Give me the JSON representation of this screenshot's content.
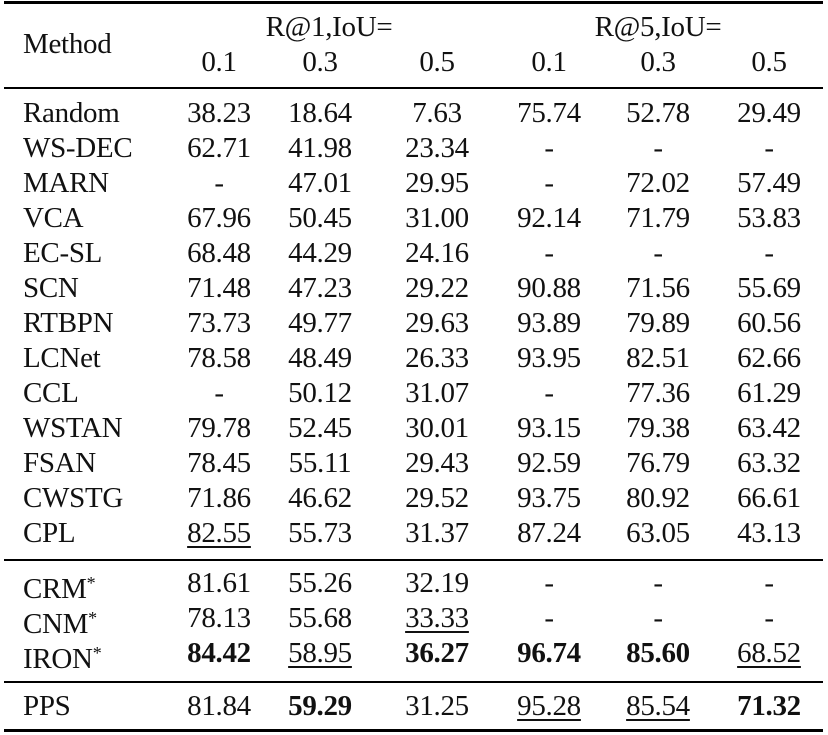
{
  "table": {
    "header": {
      "method_label": "Method",
      "groups": [
        {
          "label": "R@1,IoU=",
          "subcolumns": [
            "0.1",
            "0.3",
            "0.5"
          ]
        },
        {
          "label": "R@5,IoU=",
          "subcolumns": [
            "0.1",
            "0.3",
            "0.5"
          ]
        }
      ]
    },
    "sections": [
      {
        "rows": [
          {
            "method": "Random",
            "marker": "",
            "values": [
              "38.23",
              "18.64",
              "7.63",
              "75.74",
              "52.78",
              "29.49"
            ],
            "bold": [],
            "underline": []
          },
          {
            "method": "WS-DEC",
            "marker": "",
            "values": [
              "62.71",
              "41.98",
              "23.34",
              "-",
              "-",
              "-"
            ],
            "bold": [],
            "underline": []
          },
          {
            "method": "MARN",
            "marker": "",
            "values": [
              "-",
              "47.01",
              "29.95",
              "-",
              "72.02",
              "57.49"
            ],
            "bold": [],
            "underline": []
          },
          {
            "method": "VCA",
            "marker": "",
            "values": [
              "67.96",
              "50.45",
              "31.00",
              "92.14",
              "71.79",
              "53.83"
            ],
            "bold": [],
            "underline": []
          },
          {
            "method": "EC-SL",
            "marker": "",
            "values": [
              "68.48",
              "44.29",
              "24.16",
              "-",
              "-",
              "-"
            ],
            "bold": [],
            "underline": []
          },
          {
            "method": "SCN",
            "marker": "",
            "values": [
              "71.48",
              "47.23",
              "29.22",
              "90.88",
              "71.56",
              "55.69"
            ],
            "bold": [],
            "underline": []
          },
          {
            "method": "RTBPN",
            "marker": "",
            "values": [
              "73.73",
              "49.77",
              "29.63",
              "93.89",
              "79.89",
              "60.56"
            ],
            "bold": [],
            "underline": []
          },
          {
            "method": "LCNet",
            "marker": "",
            "values": [
              "78.58",
              "48.49",
              "26.33",
              "93.95",
              "82.51",
              "62.66"
            ],
            "bold": [],
            "underline": []
          },
          {
            "method": "CCL",
            "marker": "",
            "values": [
              "-",
              "50.12",
              "31.07",
              "-",
              "77.36",
              "61.29"
            ],
            "bold": [],
            "underline": []
          },
          {
            "method": "WSTAN",
            "marker": "",
            "values": [
              "79.78",
              "52.45",
              "30.01",
              "93.15",
              "79.38",
              "63.42"
            ],
            "bold": [],
            "underline": []
          },
          {
            "method": "FSAN",
            "marker": "",
            "values": [
              "78.45",
              "55.11",
              "29.43",
              "92.59",
              "76.79",
              "63.32"
            ],
            "bold": [],
            "underline": []
          },
          {
            "method": "CWSTG",
            "marker": "",
            "values": [
              "71.86",
              "46.62",
              "29.52",
              "93.75",
              "80.92",
              "66.61"
            ],
            "bold": [],
            "underline": []
          },
          {
            "method": "CPL",
            "marker": "",
            "values": [
              "82.55",
              "55.73",
              "31.37",
              "87.24",
              "63.05",
              "43.13"
            ],
            "bold": [],
            "underline": [
              0
            ]
          }
        ]
      },
      {
        "rows": [
          {
            "method": "CRM",
            "marker": "*",
            "values": [
              "81.61",
              "55.26",
              "32.19",
              "-",
              "-",
              "-"
            ],
            "bold": [],
            "underline": []
          },
          {
            "method": "CNM",
            "marker": "*",
            "values": [
              "78.13",
              "55.68",
              "33.33",
              "-",
              "-",
              "-"
            ],
            "bold": [],
            "underline": [
              2
            ]
          },
          {
            "method": "IRON",
            "marker": "*",
            "values": [
              "84.42",
              "58.95",
              "36.27",
              "96.74",
              "85.60",
              "68.52"
            ],
            "bold": [
              0,
              2,
              3,
              4
            ],
            "underline": [
              1,
              5
            ]
          }
        ]
      },
      {
        "rows": [
          {
            "method": "PPS",
            "marker": "",
            "values": [
              "81.84",
              "59.29",
              "31.25",
              "95.28",
              "85.54",
              "71.32"
            ],
            "bold": [
              1,
              5
            ],
            "underline": [
              3,
              4
            ]
          }
        ]
      }
    ]
  }
}
